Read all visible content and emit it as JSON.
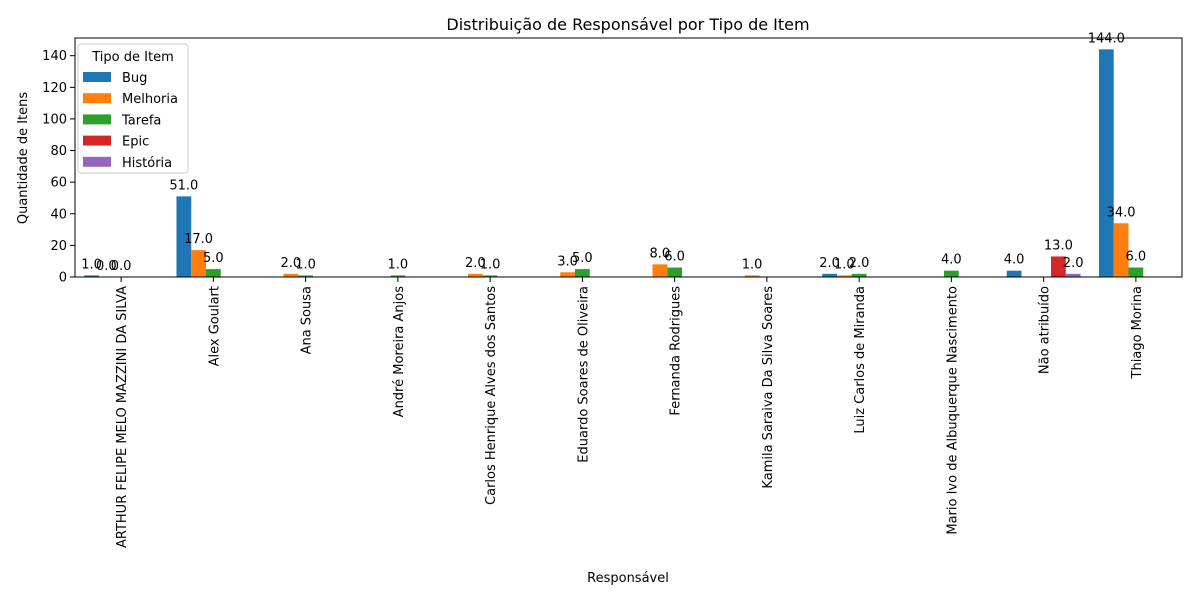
{
  "chart_data": {
    "type": "bar",
    "title": "Distribuição de Responsável por Tipo de Item",
    "xlabel": "Responsável",
    "ylabel": "Quantidade de Itens",
    "ylim": [
      0,
      151.2
    ],
    "yticks": [
      0,
      20,
      40,
      60,
      80,
      100,
      120,
      140
    ],
    "legend_title": "Tipo de Item",
    "legend_position": "top-left",
    "categories": [
      "ARTHUR FELIPE MELO MAZZINI DA SILVA",
      "Alex Goulart",
      "Ana Sousa",
      "André Moreira Anjos",
      "Carlos Henrique Alves dos Santos",
      "Eduardo Soares de Oliveira",
      "Fernanda  Rodrigues",
      "Kamila Saraiva Da Silva Soares",
      "Luiz Carlos de Miranda",
      "Mario Ivo de Albuquerque Nascimento",
      "Não atribuído",
      "Thiago Morina"
    ],
    "series": [
      {
        "name": "Bug",
        "color": "#1f77b4",
        "values": [
          1,
          51,
          null,
          null,
          null,
          null,
          null,
          null,
          2,
          null,
          4,
          144
        ]
      },
      {
        "name": "Melhoria",
        "color": "#ff7f0e",
        "values": [
          0,
          17,
          2,
          null,
          2,
          3,
          8,
          1,
          1,
          null,
          null,
          34
        ]
      },
      {
        "name": "Tarefa",
        "color": "#2ca02c",
        "values": [
          0,
          5,
          1,
          1,
          1,
          5,
          6,
          null,
          2,
          4,
          null,
          6
        ]
      },
      {
        "name": "Epic",
        "color": "#d62728",
        "values": [
          null,
          null,
          null,
          null,
          null,
          null,
          null,
          null,
          null,
          null,
          13,
          null
        ]
      },
      {
        "name": "História",
        "color": "#9467bd",
        "values": [
          null,
          null,
          null,
          null,
          null,
          null,
          null,
          null,
          null,
          null,
          2,
          null
        ]
      }
    ],
    "data_labels": [
      [
        "1.0",
        "51.0",
        null,
        null,
        null,
        null,
        null,
        null,
        "2.0",
        null,
        "4.0",
        "144.0"
      ],
      [
        "0.0",
        "17.0",
        "2.0",
        null,
        "2.0",
        "3.0",
        "8.0",
        "1.0",
        "1.0",
        null,
        null,
        "34.0"
      ],
      [
        "0.0",
        "5.0",
        "1.0",
        "1.0",
        "1.0",
        "5.0",
        "6.0",
        null,
        "2.0",
        "4.0",
        null,
        "6.0"
      ],
      [
        null,
        null,
        null,
        null,
        null,
        null,
        null,
        null,
        null,
        null,
        "13.0",
        null
      ],
      [
        null,
        null,
        null,
        null,
        null,
        null,
        null,
        null,
        null,
        null,
        "2.0",
        null
      ]
    ]
  }
}
